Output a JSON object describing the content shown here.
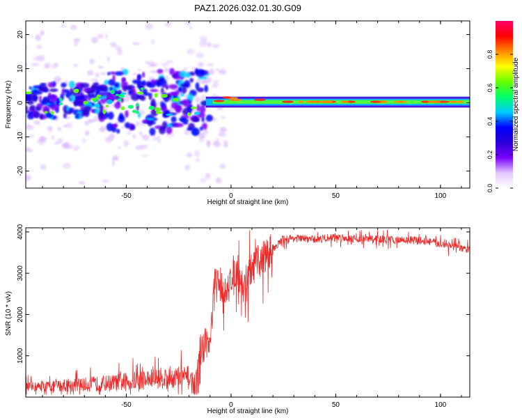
{
  "figure": {
    "title": "PAZ1.2026.032.01.30.G09"
  },
  "chart_data": [
    {
      "type": "heatmap",
      "title": "PAZ1.2026.032.01.30.G09",
      "xlabel": "Height of straight line (km)",
      "ylabel": "Frequency (Hz)",
      "xlim": [
        -98,
        114
      ],
      "ylim": [
        -25,
        24
      ],
      "xticks": [
        -50,
        0,
        50,
        100
      ],
      "xtick_labels": [
        "-50",
        "0",
        "50",
        "100"
      ],
      "yticks": [
        -20,
        -10,
        0,
        10,
        20
      ],
      "ytick_labels": [
        "-20",
        "-10",
        "0",
        "10",
        "20"
      ],
      "colorbar": {
        "label": "Normalized spectral amplitude",
        "range": [
          0,
          1
        ],
        "ticks": [
          0.0,
          0.2,
          0.4,
          0.6,
          0.8
        ],
        "tick_labels": [
          "0.0",
          "0.2",
          "0.4",
          "0.6",
          "0.8"
        ],
        "colors": [
          "#ffffff",
          "#e3c6ff",
          "#7a00ff",
          "#2a00d4",
          "#0000ff",
          "#00ccff",
          "#00ff66",
          "#66ff00",
          "#ffff00",
          "#ff8800",
          "#ff0000",
          "#ff0066"
        ]
      },
      "description_points": {
        "line_center_hz": 0.3,
        "band_hz_above_neg10km": [
          -0.8,
          1.2
        ],
        "scatter_region_km": [
          -98,
          -10
        ],
        "scatter_hz": [
          -24,
          24
        ]
      }
    },
    {
      "type": "line",
      "xlabel": "Height of straight line (km)",
      "ylabel": "SNR (10 * v/v)",
      "xlim": [
        -98,
        114
      ],
      "ylim": [
        0,
        4100
      ],
      "xticks": [
        -50,
        0,
        50,
        100
      ],
      "xtick_labels": [
        "-50",
        "0",
        "50",
        "100"
      ],
      "yticks": [
        1000,
        2000,
        3000,
        4000
      ],
      "ytick_labels": [
        "1000",
        "2000",
        "3000",
        "4000"
      ],
      "color": "#ee2a2a",
      "x": [
        -98,
        -90,
        -80,
        -70,
        -60,
        -50,
        -40,
        -30,
        -20,
        -17,
        -15,
        -12,
        -10,
        -8,
        -5,
        -2,
        0,
        3,
        6,
        8,
        10,
        15,
        20,
        25,
        30,
        40,
        50,
        60,
        70,
        80,
        90,
        100,
        110,
        114
      ],
      "y": [
        250,
        250,
        280,
        300,
        330,
        370,
        430,
        480,
        470,
        250,
        900,
        1400,
        1250,
        2700,
        2800,
        2400,
        2950,
        3100,
        2600,
        2900,
        3100,
        3350,
        3600,
        3820,
        3850,
        3820,
        3880,
        3830,
        3830,
        3800,
        3800,
        3720,
        3600,
        3560
      ]
    }
  ]
}
